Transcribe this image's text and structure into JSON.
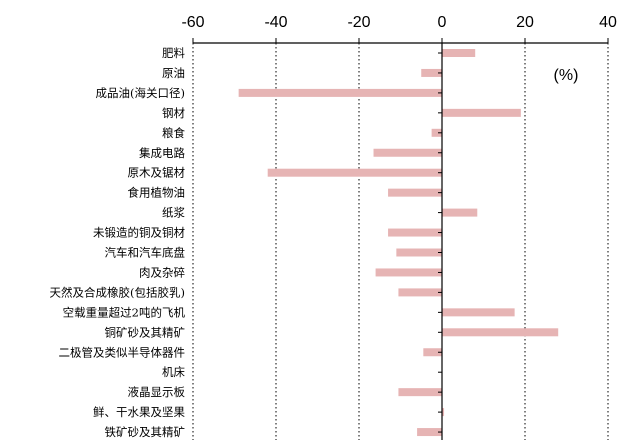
{
  "chart_data": {
    "type": "bar",
    "orientation": "horizontal",
    "unit": "(%)",
    "xlim": [
      -60,
      40
    ],
    "xticks": [
      "-60",
      "-40",
      "-20",
      "0",
      "20",
      "40"
    ],
    "xticks_values": [
      -60,
      -40,
      -20,
      0,
      20,
      40
    ],
    "grid": "vertical dotted",
    "bar_color": "#e6b4b4",
    "categories": [
      "肥料",
      "原油",
      "成品油(海关口径)",
      "钢材",
      "粮食",
      "集成电路",
      "原木及锯材",
      "食用植物油",
      "纸浆",
      "未锻造的铜及铜材",
      "汽车和汽车底盘",
      "肉及杂碎",
      "天然及合成橡胶(包括胶乳)",
      "空载重量超过2吨的飞机",
      "铜矿砂及其精矿",
      "二极管及类似半导体器件",
      "机床",
      "液晶显示板",
      "鲜、干水果及坚果",
      "铁矿砂及其精矿"
    ],
    "values": [
      8,
      -5,
      -49,
      19,
      -2.5,
      -16.5,
      -42,
      -13,
      8.5,
      -13,
      -11,
      -16,
      -10.5,
      17.5,
      28,
      -4.5,
      0,
      -10.5,
      0.5,
      -6
    ]
  }
}
